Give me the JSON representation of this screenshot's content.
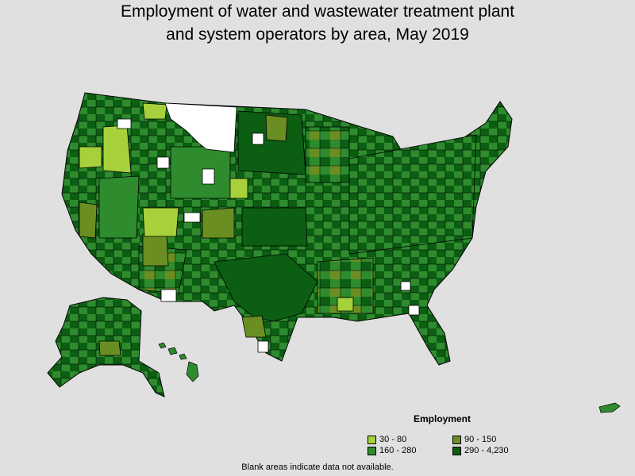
{
  "title": {
    "line1": "Employment of water and wastewater treatment plant",
    "line2": "and system operators by area, May 2019"
  },
  "legend": {
    "title": "Employment",
    "items": [
      {
        "label": "30 - 80",
        "color": "#a6d13a"
      },
      {
        "label": "90 - 150",
        "color": "#6b8e23"
      },
      {
        "label": "160 - 280",
        "color": "#2e8b2e"
      },
      {
        "label": "290 - 4,230",
        "color": "#0b5e12"
      }
    ]
  },
  "footnote": "Blank areas indicate data not available.",
  "map": {
    "no_data_color": "#ffffff",
    "background_color": "#e0e0e0",
    "border_color": "#000000"
  }
}
